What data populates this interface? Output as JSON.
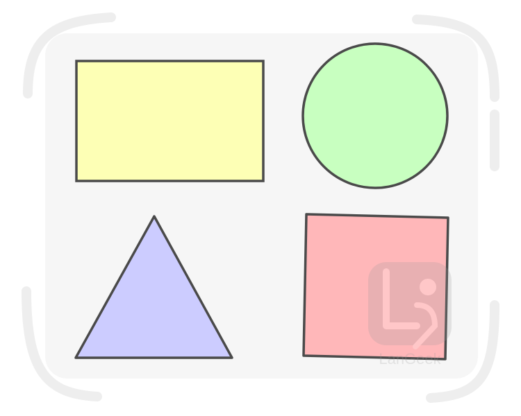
{
  "diagram": {
    "colors": {
      "panel": "#f6f6f6",
      "bracket": "#eeeeee",
      "outline": "#4a4a4a",
      "rectangle": "#fdffb5",
      "circle": "#c8ffc0",
      "triangle": "#ccccff",
      "square": "#ffb7b9",
      "watermark": "#9a9a9a"
    },
    "shapes": [
      {
        "kind": "rectangle",
        "icon": "rectangle-shape"
      },
      {
        "kind": "circle",
        "icon": "circle-shape"
      },
      {
        "kind": "triangle",
        "icon": "triangle-shape"
      },
      {
        "kind": "square",
        "icon": "square-shape"
      }
    ],
    "watermark": {
      "text": "LanGeek",
      "icon": "langeek-logo-icon"
    }
  }
}
